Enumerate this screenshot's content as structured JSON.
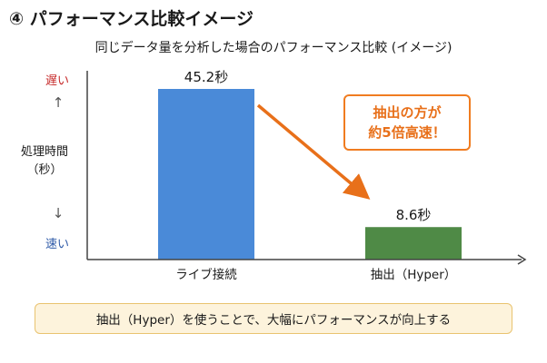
{
  "heading": "④ パフォーマンス比較イメージ",
  "chart_data": {
    "type": "bar",
    "title": "同じデータ量を分析した場合のパフォーマンス比較 (イメージ)",
    "ylabel": "処理時間\n（秒）",
    "y_top_label": "遅い",
    "y_bottom_label": "速い",
    "arrow_up": "↑",
    "arrow_down": "↓",
    "categories": [
      "ライブ接続",
      "抽出（Hyper）"
    ],
    "values": [
      45.2,
      8.6
    ],
    "value_labels": [
      "45.2秒",
      "8.6秒"
    ],
    "ylim": [
      0,
      50
    ],
    "grid": false,
    "bar_colors": [
      "#4a8ad8",
      "#4f8a46"
    ],
    "annotation": {
      "lines": [
        "抽出の方が",
        "約5倍高速！"
      ],
      "color": "#f07c20"
    }
  },
  "footer": "抽出（Hyper）を使うことで、大幅にパフォーマンスが向上する"
}
